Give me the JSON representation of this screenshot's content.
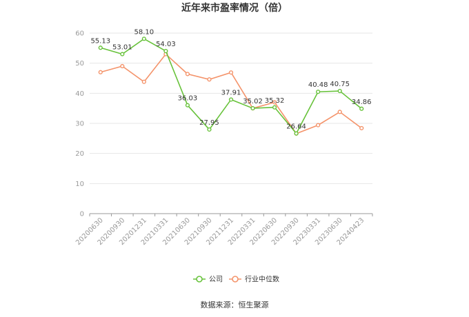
{
  "chart_data": {
    "type": "line",
    "title": "近年来市盈率情况（倍）",
    "categories": [
      "20200630",
      "20200930",
      "20201231",
      "20210331",
      "20210630",
      "20210930",
      "20211231",
      "20220331",
      "20220630",
      "20220930",
      "20230331",
      "20230630",
      "20240423"
    ],
    "series": [
      {
        "name": "公司",
        "color": "#67c23a",
        "values": [
          55.13,
          53.01,
          58.1,
          54.03,
          36.03,
          27.95,
          37.91,
          35.02,
          35.32,
          26.64,
          40.48,
          40.75,
          34.86
        ],
        "labels": [
          "55.13",
          "53.01",
          "58.10",
          "54.03",
          "36.03",
          "27.95",
          "37.91",
          "35.02",
          "35.32",
          "26.64",
          "40.48",
          "40.75",
          "34.86"
        ]
      },
      {
        "name": "行业中位数",
        "color": "#f4936a",
        "values": [
          47.0,
          49.0,
          43.8,
          53.0,
          46.4,
          44.6,
          46.9,
          35.0,
          37.0,
          26.6,
          29.4,
          33.8,
          28.4
        ]
      }
    ],
    "ylim": [
      0,
      60
    ],
    "yticks": [
      0,
      10,
      20,
      30,
      40,
      50,
      60
    ],
    "grid": true,
    "legend": "bottom"
  },
  "source": "数据来源：恒生聚源"
}
